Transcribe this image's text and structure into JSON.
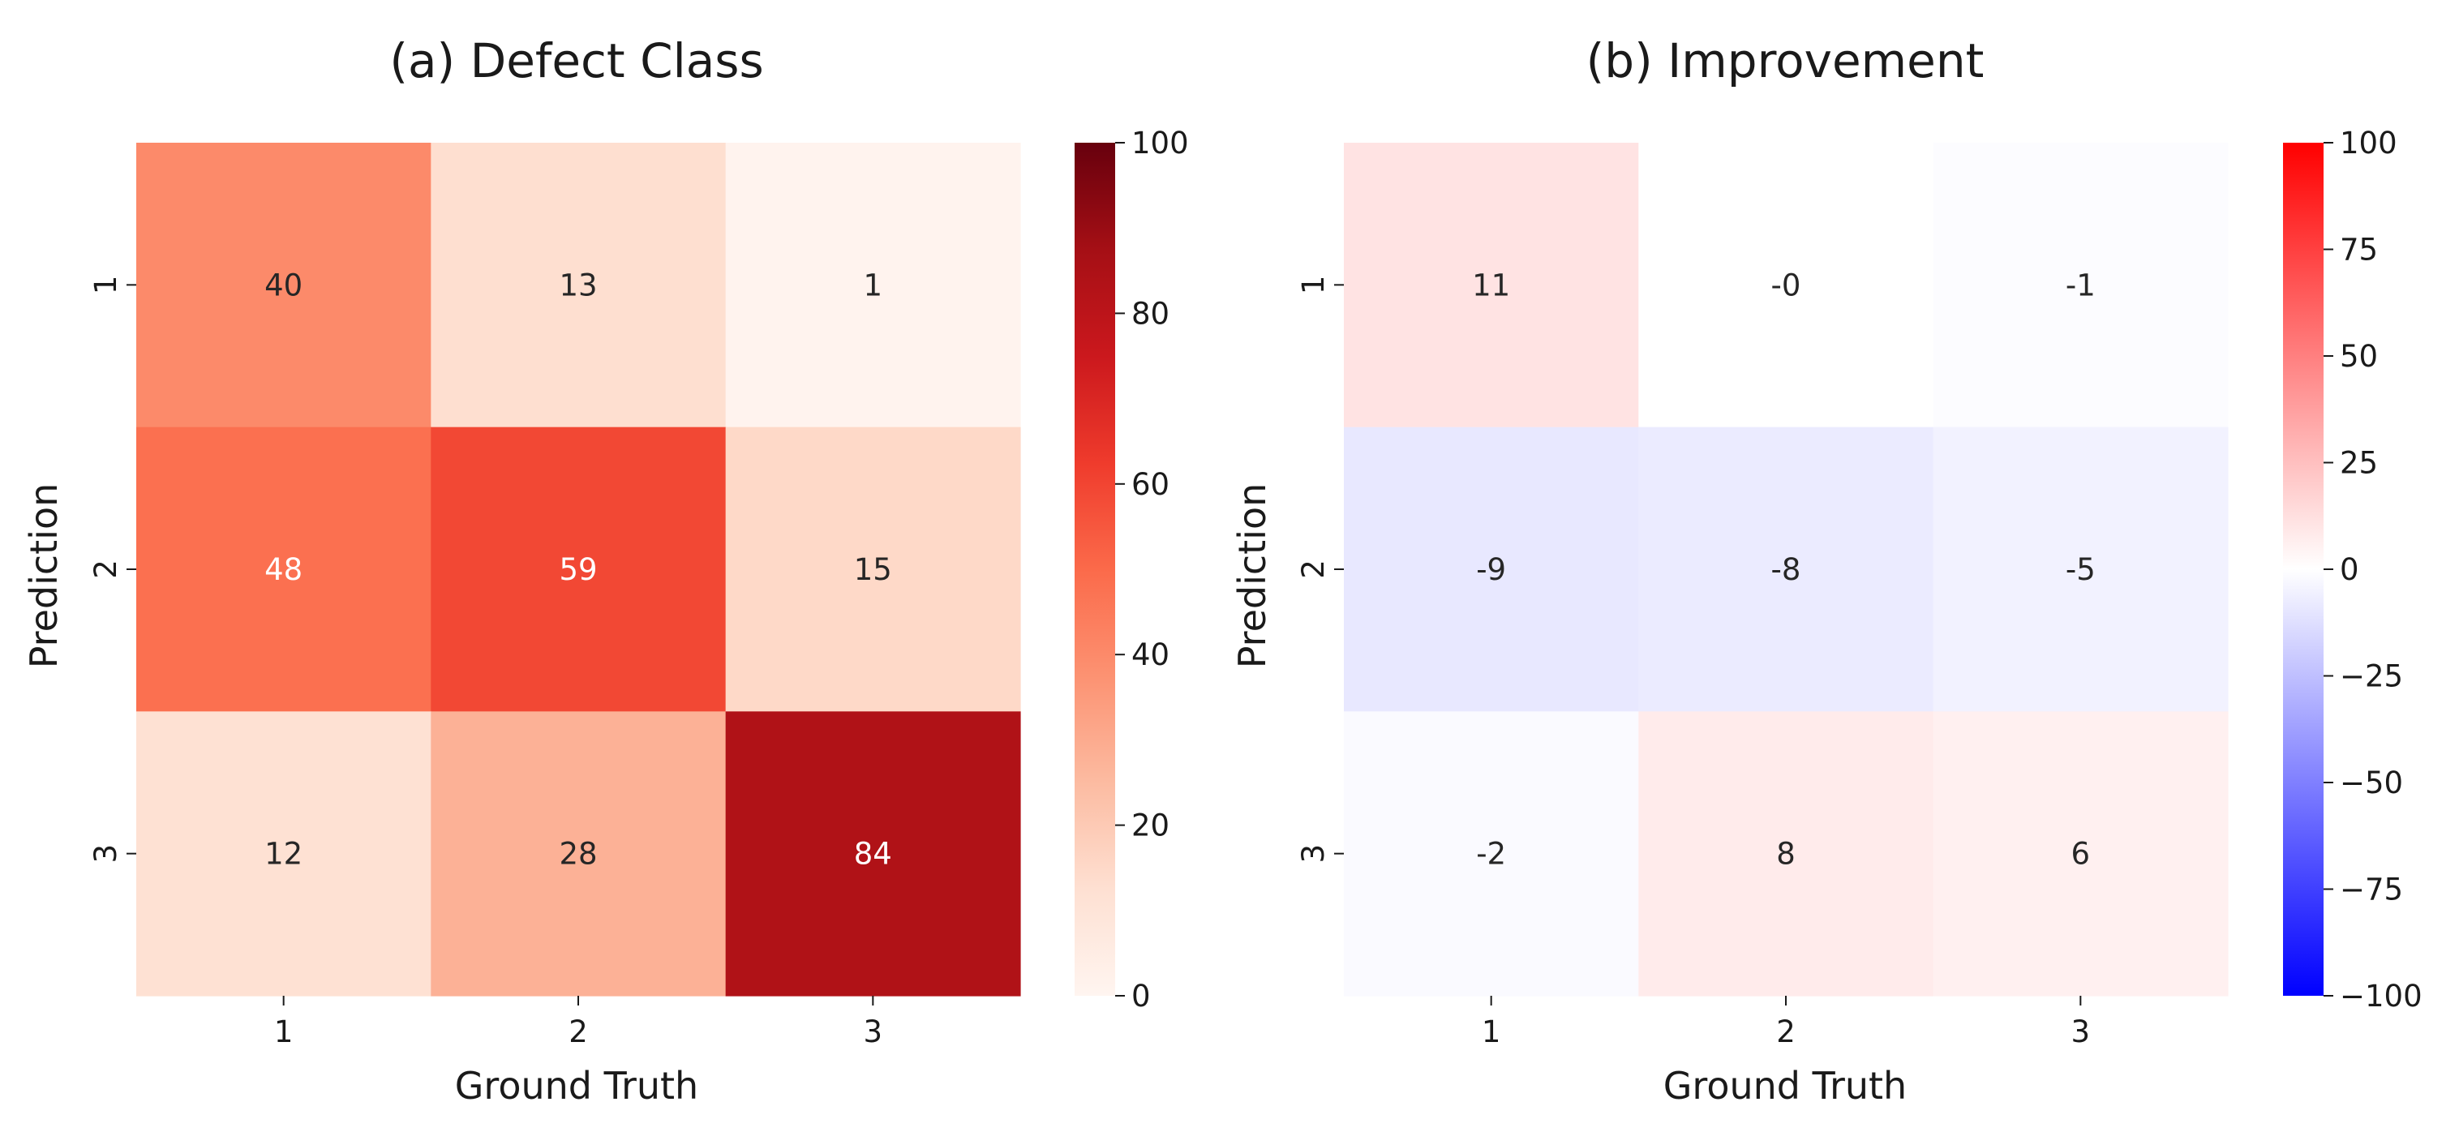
{
  "chart_data": [
    {
      "type": "heatmap",
      "title": "(a) Defect Class",
      "xlabel": "Ground Truth",
      "ylabel": "Prediction",
      "x_categories": [
        "1",
        "2",
        "3"
      ],
      "y_categories": [
        "1",
        "2",
        "3"
      ],
      "values": [
        [
          40,
          13,
          1
        ],
        [
          48,
          59,
          15
        ],
        [
          12,
          28,
          84
        ]
      ],
      "colormap": "Reds",
      "vmin": 0,
      "vmax": 100,
      "colorbar_ticks": [
        "0",
        "20",
        "40",
        "60",
        "80",
        "100"
      ],
      "annotate": true
    },
    {
      "type": "heatmap",
      "title": "(b) Improvement",
      "xlabel": "Ground Truth",
      "ylabel": "Prediction",
      "x_categories": [
        "1",
        "2",
        "3"
      ],
      "y_categories": [
        "1",
        "2",
        "3"
      ],
      "values": [
        [
          11,
          0,
          -1
        ],
        [
          -9,
          -8,
          -5
        ],
        [
          -2,
          8,
          6
        ]
      ],
      "labels": [
        [
          "11",
          "-0",
          "-1"
        ],
        [
          "-9",
          "-8",
          "-5"
        ],
        [
          "-2",
          "8",
          "6"
        ]
      ],
      "colormap": "bwr",
      "vmin": -100,
      "vmax": 100,
      "colorbar_ticks": [
        "−100",
        "−75",
        "−50",
        "−25",
        "0",
        "25",
        "50",
        "75",
        "100"
      ],
      "annotate": true
    }
  ]
}
